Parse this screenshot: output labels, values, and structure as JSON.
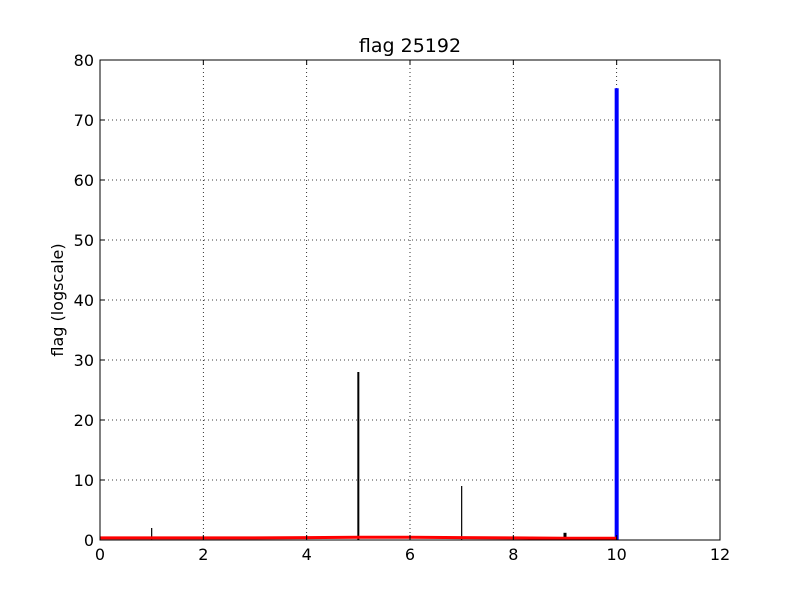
{
  "chart_data": {
    "type": "bar",
    "title": "flag 25192",
    "xlabel": "",
    "ylabel": "flag (logscale)",
    "xlim": [
      0,
      12
    ],
    "ylim": [
      0,
      80
    ],
    "xticks": [
      "0",
      "2",
      "4",
      "6",
      "8",
      "10",
      "12"
    ],
    "yticks": [
      "0",
      "10",
      "20",
      "30",
      "40",
      "50",
      "60",
      "70",
      "80"
    ],
    "grid": true,
    "series": [
      {
        "color": "#000000",
        "style": "stems",
        "x": [
          1,
          5,
          7,
          9
        ],
        "values": [
          2,
          28,
          9,
          1.2
        ]
      },
      {
        "color": "#0000ff",
        "style": "stems",
        "x": [
          10
        ],
        "values": [
          75.3
        ]
      },
      {
        "color": "#ff0000",
        "style": "line",
        "x": [
          0,
          1,
          2,
          3,
          4,
          5,
          6,
          7,
          8,
          9,
          10
        ],
        "values": [
          0.35,
          0.35,
          0.35,
          0.35,
          0.4,
          0.45,
          0.45,
          0.4,
          0.35,
          0.3,
          0.3
        ]
      }
    ]
  }
}
